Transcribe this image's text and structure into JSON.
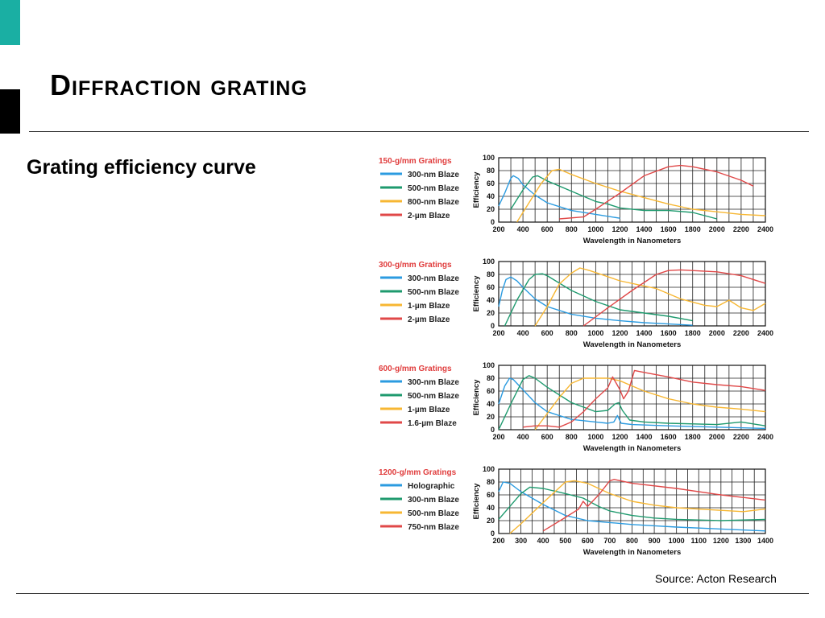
{
  "slide": {
    "title": "Diffraction grating",
    "subtitle": "Grating efficiency curve",
    "source": "Source: Acton Research"
  },
  "colors": {
    "accent": "#1aafa3",
    "blue": "#2b9be0",
    "green": "#1e9a6e",
    "yellow": "#f7b733",
    "red": "#e04848"
  },
  "chart_data": [
    {
      "type": "line",
      "title": "150-g/mm Gratings",
      "xlabel": "Wavelength in Nanometers",
      "ylabel": "Efficiency",
      "xlim": [
        200,
        2400
      ],
      "ylim": [
        0,
        100
      ],
      "xticks": [
        200,
        400,
        600,
        800,
        1000,
        1200,
        1400,
        1600,
        1800,
        2000,
        2200,
        2400
      ],
      "yticks": [
        0,
        20,
        40,
        60,
        80,
        100
      ],
      "grid": true,
      "legend": "left",
      "series": [
        {
          "name": "300-nm Blaze",
          "color": "blue",
          "points": [
            [
              200,
              25
            ],
            [
              250,
              45
            ],
            [
              300,
              68
            ],
            [
              320,
              72
            ],
            [
              360,
              68
            ],
            [
              400,
              58
            ],
            [
              500,
              42
            ],
            [
              600,
              30
            ],
            [
              800,
              18
            ],
            [
              1000,
              12
            ],
            [
              1200,
              6
            ]
          ]
        },
        {
          "name": "500-nm Blaze",
          "color": "green",
          "points": [
            [
              300,
              20
            ],
            [
              400,
              50
            ],
            [
              480,
              70
            ],
            [
              520,
              72
            ],
            [
              600,
              64
            ],
            [
              800,
              48
            ],
            [
              1000,
              32
            ],
            [
              1100,
              28
            ],
            [
              1200,
              22
            ],
            [
              1400,
              18
            ],
            [
              1600,
              18
            ],
            [
              1800,
              15
            ],
            [
              2000,
              5
            ]
          ]
        },
        {
          "name": "800-nm Blaze",
          "color": "yellow",
          "points": [
            [
              350,
              0
            ],
            [
              450,
              30
            ],
            [
              550,
              60
            ],
            [
              640,
              80
            ],
            [
              700,
              82
            ],
            [
              800,
              74
            ],
            [
              1000,
              60
            ],
            [
              1200,
              48
            ],
            [
              1400,
              38
            ],
            [
              1600,
              28
            ],
            [
              1800,
              20
            ],
            [
              2000,
              16
            ],
            [
              2200,
              12
            ],
            [
              2400,
              10
            ]
          ]
        },
        {
          "name": "2-µm Blaze",
          "color": "red",
          "points": [
            [
              700,
              5
            ],
            [
              900,
              8
            ],
            [
              1000,
              20
            ],
            [
              1200,
              45
            ],
            [
              1400,
              72
            ],
            [
              1600,
              86
            ],
            [
              1700,
              88
            ],
            [
              1800,
              86
            ],
            [
              2000,
              78
            ],
            [
              2200,
              65
            ],
            [
              2300,
              56
            ]
          ]
        }
      ]
    },
    {
      "type": "line",
      "title": "300-g/mm Gratings",
      "xlabel": "Wavelength in Nanometers",
      "ylabel": "Efficiency",
      "xlim": [
        200,
        2400
      ],
      "ylim": [
        0,
        100
      ],
      "xticks": [
        200,
        400,
        600,
        800,
        1000,
        1200,
        1400,
        1600,
        1800,
        2000,
        2200,
        2400
      ],
      "yticks": [
        0,
        20,
        40,
        60,
        80,
        100
      ],
      "grid": true,
      "legend": "left",
      "series": [
        {
          "name": "300-nm Blaze",
          "color": "blue",
          "points": [
            [
              200,
              30
            ],
            [
              230,
              55
            ],
            [
              260,
              72
            ],
            [
              300,
              76
            ],
            [
              350,
              70
            ],
            [
              400,
              60
            ],
            [
              500,
              42
            ],
            [
              600,
              30
            ],
            [
              800,
              18
            ],
            [
              1000,
              12
            ],
            [
              1200,
              8
            ],
            [
              1400,
              5
            ],
            [
              1600,
              3
            ],
            [
              1800,
              1
            ]
          ]
        },
        {
          "name": "500-nm Blaze",
          "color": "green",
          "points": [
            [
              250,
              0
            ],
            [
              350,
              40
            ],
            [
              450,
              72
            ],
            [
              500,
              80
            ],
            [
              560,
              81
            ],
            [
              600,
              78
            ],
            [
              800,
              55
            ],
            [
              1000,
              38
            ],
            [
              1200,
              25
            ],
            [
              1400,
              20
            ],
            [
              1600,
              15
            ],
            [
              1800,
              8
            ]
          ]
        },
        {
          "name": "1-µm Blaze",
          "color": "yellow",
          "points": [
            [
              500,
              0
            ],
            [
              600,
              30
            ],
            [
              700,
              65
            ],
            [
              800,
              82
            ],
            [
              870,
              90
            ],
            [
              950,
              86
            ],
            [
              1200,
              70
            ],
            [
              1400,
              62
            ],
            [
              1500,
              58
            ],
            [
              1700,
              42
            ],
            [
              1900,
              32
            ],
            [
              2000,
              30
            ],
            [
              2100,
              40
            ],
            [
              2200,
              28
            ],
            [
              2300,
              24
            ],
            [
              2400,
              35
            ]
          ]
        },
        {
          "name": "2-µm Blaze",
          "color": "red",
          "points": [
            [
              900,
              0
            ],
            [
              1100,
              28
            ],
            [
              1300,
              55
            ],
            [
              1500,
              80
            ],
            [
              1600,
              86
            ],
            [
              1700,
              87
            ],
            [
              2000,
              84
            ],
            [
              2200,
              78
            ],
            [
              2400,
              66
            ]
          ]
        }
      ]
    },
    {
      "type": "line",
      "title": "600-g/mm Gratings",
      "xlabel": "Wavelength in Nanometers",
      "ylabel": "Efficiency",
      "xlim": [
        200,
        2400
      ],
      "ylim": [
        0,
        100
      ],
      "xticks": [
        200,
        400,
        600,
        800,
        1000,
        1200,
        1400,
        1600,
        1800,
        2000,
        2200,
        2400
      ],
      "yticks": [
        0,
        20,
        40,
        60,
        80,
        100
      ],
      "grid": true,
      "legend": "left",
      "series": [
        {
          "name": "300-nm Blaze",
          "color": "blue",
          "points": [
            [
              200,
              40
            ],
            [
              250,
              68
            ],
            [
              290,
              80
            ],
            [
              320,
              78
            ],
            [
              400,
              62
            ],
            [
              500,
              42
            ],
            [
              600,
              28
            ],
            [
              700,
              22
            ],
            [
              800,
              16
            ],
            [
              900,
              14
            ],
            [
              1000,
              12
            ],
            [
              1100,
              10
            ],
            [
              1150,
              12
            ],
            [
              1180,
              22
            ],
            [
              1210,
              10
            ],
            [
              1300,
              8
            ],
            [
              1600,
              6
            ],
            [
              2000,
              4
            ],
            [
              2400,
              2
            ]
          ]
        },
        {
          "name": "500-nm Blaze",
          "color": "green",
          "points": [
            [
              200,
              0
            ],
            [
              300,
              40
            ],
            [
              400,
              78
            ],
            [
              450,
              84
            ],
            [
              500,
              80
            ],
            [
              600,
              66
            ],
            [
              800,
              42
            ],
            [
              1000,
              28
            ],
            [
              1100,
              30
            ],
            [
              1160,
              40
            ],
            [
              1190,
              42
            ],
            [
              1220,
              30
            ],
            [
              1280,
              15
            ],
            [
              1400,
              12
            ],
            [
              1600,
              10
            ],
            [
              2000,
              8
            ],
            [
              2200,
              12
            ],
            [
              2400,
              6
            ]
          ]
        },
        {
          "name": "1-µm Blaze",
          "color": "yellow",
          "points": [
            [
              500,
              0
            ],
            [
              600,
              25
            ],
            [
              700,
              50
            ],
            [
              800,
              72
            ],
            [
              900,
              80
            ],
            [
              1000,
              80
            ],
            [
              1100,
              80
            ],
            [
              1200,
              76
            ],
            [
              1300,
              68
            ],
            [
              1400,
              60
            ],
            [
              1600,
              48
            ],
            [
              1800,
              40
            ],
            [
              2000,
              35
            ],
            [
              2200,
              32
            ],
            [
              2400,
              28
            ]
          ]
        },
        {
          "name": "1.6-µm Blaze",
          "color": "red",
          "points": [
            [
              400,
              4
            ],
            [
              500,
              6
            ],
            [
              600,
              6
            ],
            [
              700,
              4
            ],
            [
              800,
              12
            ],
            [
              900,
              28
            ],
            [
              1000,
              48
            ],
            [
              1100,
              65
            ],
            [
              1140,
              82
            ],
            [
              1200,
              62
            ],
            [
              1230,
              48
            ],
            [
              1270,
              60
            ],
            [
              1320,
              92
            ],
            [
              1400,
              89
            ],
            [
              1600,
              82
            ],
            [
              1800,
              74
            ],
            [
              2000,
              70
            ],
            [
              2200,
              67
            ],
            [
              2400,
              61
            ]
          ]
        }
      ]
    },
    {
      "type": "line",
      "title": "1200-g/mm Gratings",
      "xlabel": "Wavelength in Nanometers",
      "ylabel": "Efficiency",
      "xlim": [
        200,
        1400
      ],
      "ylim": [
        0,
        100
      ],
      "xticks": [
        200,
        300,
        400,
        500,
        600,
        700,
        800,
        900,
        1000,
        1100,
        1200,
        1300,
        1400
      ],
      "yticks": [
        0,
        20,
        40,
        60,
        80,
        100
      ],
      "grid": true,
      "legend": "left",
      "series": [
        {
          "name": "Holographic",
          "color": "blue",
          "points": [
            [
              200,
              65
            ],
            [
              220,
              80
            ],
            [
              250,
              78
            ],
            [
              300,
              65
            ],
            [
              400,
              45
            ],
            [
              500,
              28
            ],
            [
              600,
              20
            ],
            [
              700,
              17
            ],
            [
              800,
              14
            ],
            [
              900,
              12
            ],
            [
              1000,
              10
            ],
            [
              1200,
              7
            ],
            [
              1400,
              4
            ]
          ]
        },
        {
          "name": "300-nm Blaze",
          "color": "green",
          "points": [
            [
              200,
              22
            ],
            [
              250,
              42
            ],
            [
              300,
              62
            ],
            [
              340,
              72
            ],
            [
              400,
              70
            ],
            [
              500,
              62
            ],
            [
              580,
              55
            ],
            [
              650,
              42
            ],
            [
              700,
              35
            ],
            [
              800,
              28
            ],
            [
              900,
              24
            ],
            [
              1000,
              22
            ],
            [
              1200,
              20
            ],
            [
              1400,
              22
            ]
          ]
        },
        {
          "name": "500-nm Blaze",
          "color": "yellow",
          "points": [
            [
              250,
              0
            ],
            [
              300,
              15
            ],
            [
              400,
              48
            ],
            [
              500,
              80
            ],
            [
              540,
              82
            ],
            [
              600,
              78
            ],
            [
              700,
              62
            ],
            [
              800,
              50
            ],
            [
              900,
              44
            ],
            [
              1000,
              40
            ],
            [
              1200,
              36
            ],
            [
              1300,
              34
            ],
            [
              1400,
              38
            ]
          ]
        },
        {
          "name": "750-nm Blaze",
          "color": "red",
          "points": [
            [
              400,
              4
            ],
            [
              500,
              25
            ],
            [
              560,
              38
            ],
            [
              580,
              50
            ],
            [
              600,
              42
            ],
            [
              650,
              60
            ],
            [
              700,
              82
            ],
            [
              720,
              84
            ],
            [
              800,
              78
            ],
            [
              1000,
              70
            ],
            [
              1200,
              60
            ],
            [
              1300,
              56
            ],
            [
              1400,
              52
            ]
          ]
        }
      ]
    }
  ]
}
